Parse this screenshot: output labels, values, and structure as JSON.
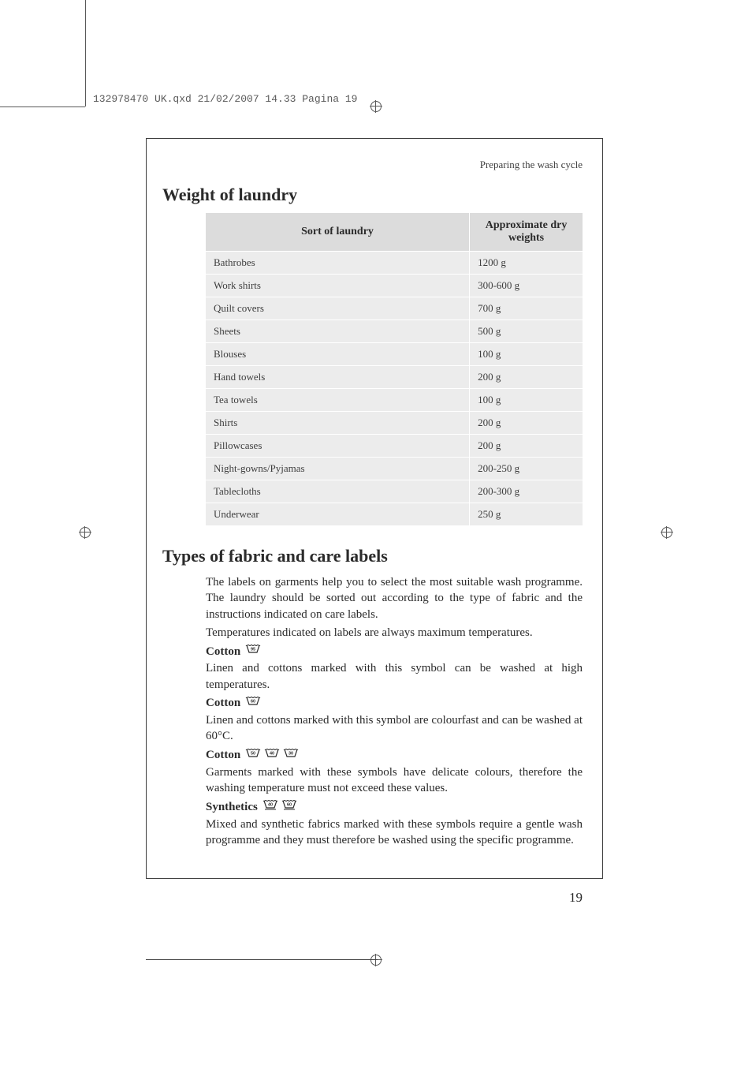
{
  "slug": "132978470 UK.qxd  21/02/2007  14.33  Pagina 19",
  "running_head": "Preparing the wash cycle",
  "section1_title": "Weight of laundry",
  "table": {
    "header_col1": "Sort of laundry",
    "header_col2": "Approximate dry weights",
    "rows": [
      {
        "item": "Bathrobes",
        "weight": "1200 g"
      },
      {
        "item": "Work shirts",
        "weight": "300-600 g"
      },
      {
        "item": "Quilt covers",
        "weight": "700 g"
      },
      {
        "item": "Sheets",
        "weight": "500 g"
      },
      {
        "item": "Blouses",
        "weight": "100 g"
      },
      {
        "item": "Hand towels",
        "weight": "200 g"
      },
      {
        "item": "Tea towels",
        "weight": "100 g"
      },
      {
        "item": "Shirts",
        "weight": "200 g"
      },
      {
        "item": "Pillowcases",
        "weight": "200 g"
      },
      {
        "item": "Night-gowns/Pyjamas",
        "weight": "200-250 g"
      },
      {
        "item": "Tablecloths",
        "weight": "200-300 g"
      },
      {
        "item": "Underwear",
        "weight": "250 g"
      }
    ]
  },
  "section2_title": "Types of fabric and care labels",
  "intro_p1": "The labels on garments help you to select the most suitable wash programme. The laundry should be sorted out according to the type of fabric and the instructions indicated on care labels.",
  "intro_p2": "Temperatures indicated on labels are always maximum temperatures.",
  "fabrics": [
    {
      "label": "Cotton",
      "temps": [
        "95"
      ],
      "underline": false,
      "text": "Linen and cottons marked with this symbol can be washed at high temperatures."
    },
    {
      "label": "Cotton",
      "temps": [
        "60"
      ],
      "underline": false,
      "text": "Linen and cottons marked with this symbol are colourfast and can be washed at 60°C."
    },
    {
      "label": "Cotton",
      "temps": [
        "50",
        "40",
        "30"
      ],
      "underline": false,
      "text": "Garments marked with these symbols have delicate colours, therefore the washing temperature must not exceed these values."
    },
    {
      "label": "Synthetics",
      "temps": [
        "40",
        "60"
      ],
      "underline": true,
      "text": "Mixed and synthetic fabrics marked with these symbols require a gentle wash programme and they must therefore be washed using the specific programme."
    }
  ],
  "page_number": "19"
}
